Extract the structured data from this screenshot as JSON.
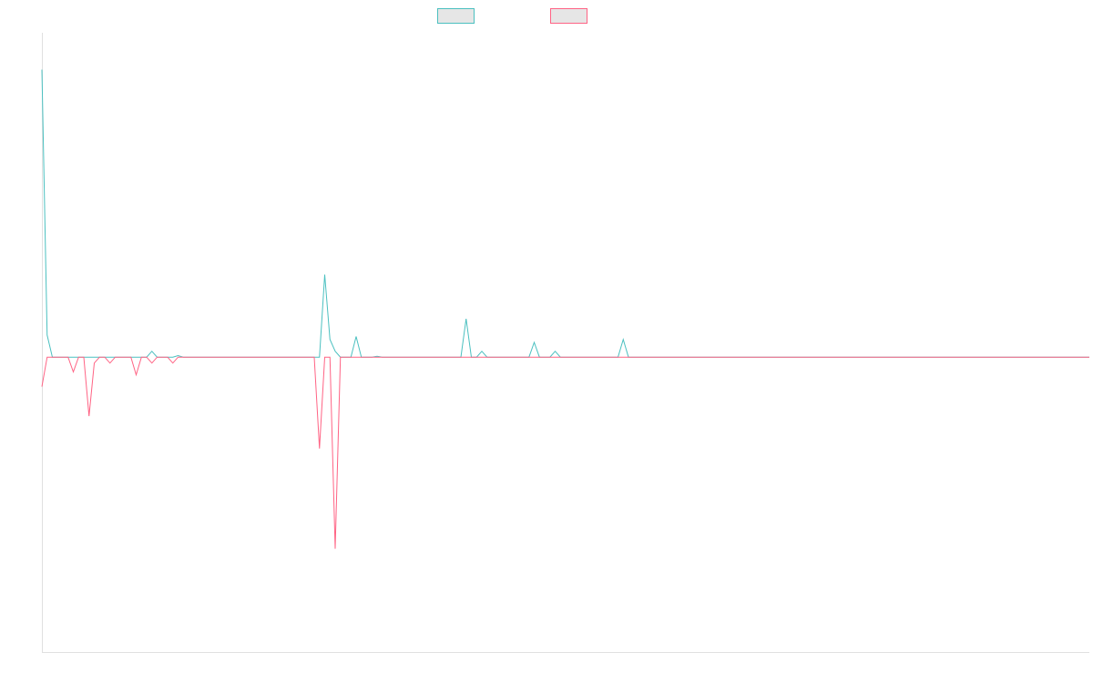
{
  "chart_data": {
    "type": "line",
    "title": "",
    "xlabel": "",
    "ylabel": "",
    "xlim": [
      0,
      200
    ],
    "ylim": [
      -1,
      1.1
    ],
    "grid": false,
    "legend_position": "top-center",
    "series": [
      {
        "color": "#4bc0c0",
        "points": [
          [
            0,
            0.975
          ],
          [
            1,
            0.075
          ],
          [
            2,
            0
          ],
          [
            20,
            0
          ],
          [
            21,
            0.02
          ],
          [
            22,
            0
          ],
          [
            25,
            0
          ],
          [
            26,
            0.005
          ],
          [
            27,
            0
          ],
          [
            53,
            0
          ],
          [
            54,
            0.28
          ],
          [
            55,
            0.06
          ],
          [
            56,
            0.02
          ],
          [
            57,
            0
          ],
          [
            59,
            0
          ],
          [
            60,
            0.07
          ],
          [
            61,
            0
          ],
          [
            63,
            0
          ],
          [
            64,
            0.003
          ],
          [
            65,
            0
          ],
          [
            80,
            0
          ],
          [
            81,
            0.13
          ],
          [
            82,
            0
          ],
          [
            83,
            0
          ],
          [
            84,
            0.02
          ],
          [
            85,
            0
          ],
          [
            93,
            0
          ],
          [
            94,
            0.05
          ],
          [
            95,
            0
          ],
          [
            97,
            0
          ],
          [
            98,
            0.02
          ],
          [
            99,
            0
          ],
          [
            110,
            0
          ],
          [
            111,
            0.06
          ],
          [
            112,
            0
          ],
          [
            200,
            0
          ]
        ]
      },
      {
        "color": "#ff6384",
        "points": [
          [
            0,
            -0.1
          ],
          [
            1,
            0
          ],
          [
            5,
            0
          ],
          [
            6,
            -0.05
          ],
          [
            7,
            0
          ],
          [
            8,
            0
          ],
          [
            9,
            -0.2
          ],
          [
            10,
            -0.02
          ],
          [
            11,
            0
          ],
          [
            12,
            0
          ],
          [
            13,
            -0.02
          ],
          [
            14,
            0
          ],
          [
            17,
            0
          ],
          [
            18,
            -0.06
          ],
          [
            19,
            0
          ],
          [
            20,
            0
          ],
          [
            21,
            -0.02
          ],
          [
            22,
            0
          ],
          [
            24,
            0
          ],
          [
            25,
            -0.02
          ],
          [
            26,
            0
          ],
          [
            52,
            0
          ],
          [
            53,
            -0.31
          ],
          [
            54,
            0
          ],
          [
            55,
            0
          ],
          [
            56,
            -0.65
          ],
          [
            57,
            0
          ],
          [
            200,
            0
          ]
        ]
      }
    ]
  }
}
